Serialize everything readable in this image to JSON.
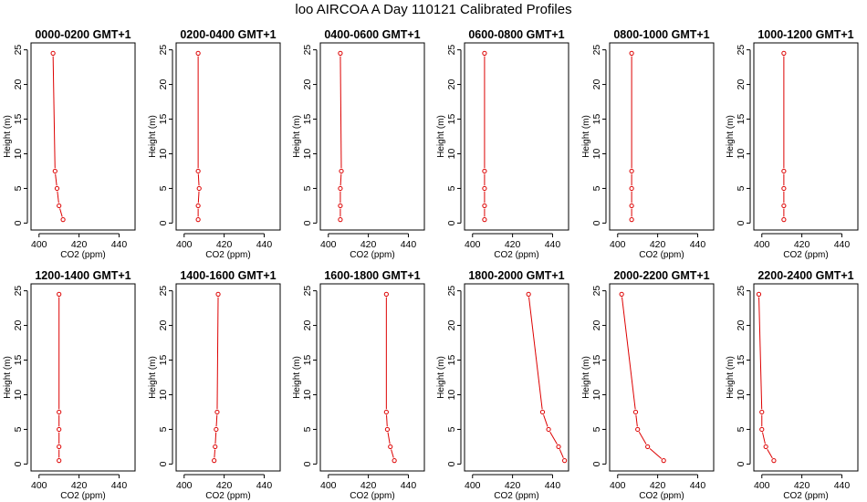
{
  "title": "loo AIRCOA A  Day 110121  Calibrated Profiles",
  "colors": {
    "series": "#dd0000",
    "axis": "#000000",
    "background": "#ffffff"
  },
  "chart_data": [
    {
      "type": "line",
      "title": "0000-0200 GMT+1",
      "xlabel": "CO2 (ppm)",
      "ylabel": "Height (m)",
      "xlim": [
        396,
        448
      ],
      "ylim": [
        -1,
        26
      ],
      "xticks": [
        400,
        420,
        440
      ],
      "yticks": [
        0,
        5,
        10,
        15,
        20,
        25
      ],
      "grid": false,
      "series": [
        {
          "x": [
            412,
            410,
            409,
            408,
            407
          ],
          "y": [
            0.5,
            2.5,
            5,
            7.5,
            24.5
          ]
        }
      ]
    },
    {
      "type": "line",
      "title": "0200-0400 GMT+1",
      "xlabel": "CO2 (ppm)",
      "ylabel": "Height (m)",
      "xlim": [
        396,
        448
      ],
      "ylim": [
        -1,
        26
      ],
      "xticks": [
        400,
        420,
        440
      ],
      "yticks": [
        0,
        5,
        10,
        15,
        20,
        25
      ],
      "grid": false,
      "series": [
        {
          "x": [
            407,
            407,
            407.5,
            407,
            407
          ],
          "y": [
            0.5,
            2.5,
            5,
            7.5,
            24.5
          ]
        }
      ]
    },
    {
      "type": "line",
      "title": "0400-0600 GMT+1",
      "xlabel": "CO2 (ppm)",
      "ylabel": "Height (m)",
      "xlim": [
        396,
        448
      ],
      "ylim": [
        -1,
        26
      ],
      "xticks": [
        400,
        420,
        440
      ],
      "yticks": [
        0,
        5,
        10,
        15,
        20,
        25
      ],
      "grid": false,
      "series": [
        {
          "x": [
            406,
            406,
            406,
            406.5,
            406
          ],
          "y": [
            0.5,
            2.5,
            5,
            7.5,
            24.5
          ]
        }
      ]
    },
    {
      "type": "line",
      "title": "0600-0800 GMT+1",
      "xlabel": "CO2 (ppm)",
      "ylabel": "Height (m)",
      "xlim": [
        396,
        448
      ],
      "ylim": [
        -1,
        26
      ],
      "xticks": [
        400,
        420,
        440
      ],
      "yticks": [
        0,
        5,
        10,
        15,
        20,
        25
      ],
      "grid": false,
      "series": [
        {
          "x": [
            406,
            406,
            406,
            406,
            406
          ],
          "y": [
            0.5,
            2.5,
            5,
            7.5,
            24.5
          ]
        }
      ]
    },
    {
      "type": "line",
      "title": "0800-1000 GMT+1",
      "xlabel": "CO2 (ppm)",
      "ylabel": "Height (m)",
      "xlim": [
        396,
        448
      ],
      "ylim": [
        -1,
        26
      ],
      "xticks": [
        400,
        420,
        440
      ],
      "yticks": [
        0,
        5,
        10,
        15,
        20,
        25
      ],
      "grid": false,
      "series": [
        {
          "x": [
            407,
            407,
            407,
            407,
            407
          ],
          "y": [
            0.5,
            2.5,
            5,
            7.5,
            24.5
          ]
        }
      ]
    },
    {
      "type": "line",
      "title": "1000-1200 GMT+1",
      "xlabel": "CO2 (ppm)",
      "ylabel": "Height (m)",
      "xlim": [
        396,
        448
      ],
      "ylim": [
        -1,
        26
      ],
      "xticks": [
        400,
        420,
        440
      ],
      "yticks": [
        0,
        5,
        10,
        15,
        20,
        25
      ],
      "grid": false,
      "series": [
        {
          "x": [
            411,
            411,
            411,
            411,
            411
          ],
          "y": [
            0.5,
            2.5,
            5,
            7.5,
            24.5
          ]
        }
      ]
    },
    {
      "type": "line",
      "title": "1200-1400 GMT+1",
      "xlabel": "CO2 (ppm)",
      "ylabel": "Height (m)",
      "xlim": [
        396,
        448
      ],
      "ylim": [
        -1,
        26
      ],
      "xticks": [
        400,
        420,
        440
      ],
      "yticks": [
        0,
        5,
        10,
        15,
        20,
        25
      ],
      "grid": false,
      "series": [
        {
          "x": [
            410,
            410,
            410,
            410,
            410
          ],
          "y": [
            0.5,
            2.5,
            5,
            7.5,
            24.5
          ]
        }
      ]
    },
    {
      "type": "line",
      "title": "1400-1600 GMT+1",
      "xlabel": "CO2 (ppm)",
      "ylabel": "Height (m)",
      "xlim": [
        396,
        448
      ],
      "ylim": [
        -1,
        26
      ],
      "xticks": [
        400,
        420,
        440
      ],
      "yticks": [
        0,
        5,
        10,
        15,
        20,
        25
      ],
      "grid": false,
      "series": [
        {
          "x": [
            415,
            415.5,
            416,
            416.5,
            417
          ],
          "y": [
            0.5,
            2.5,
            5,
            7.5,
            24.5
          ]
        }
      ]
    },
    {
      "type": "line",
      "title": "1600-1800 GMT+1",
      "xlabel": "CO2 (ppm)",
      "ylabel": "Height (m)",
      "xlim": [
        396,
        448
      ],
      "ylim": [
        -1,
        26
      ],
      "xticks": [
        400,
        420,
        440
      ],
      "yticks": [
        0,
        5,
        10,
        15,
        20,
        25
      ],
      "grid": false,
      "series": [
        {
          "x": [
            433,
            431,
            429.5,
            429,
            429
          ],
          "y": [
            0.5,
            2.5,
            5,
            7.5,
            24.5
          ]
        }
      ]
    },
    {
      "type": "line",
      "title": "1800-2000 GMT+1",
      "xlabel": "CO2 (ppm)",
      "ylabel": "Height (m)",
      "xlim": [
        396,
        448
      ],
      "ylim": [
        -1,
        26
      ],
      "xticks": [
        400,
        420,
        440
      ],
      "yticks": [
        0,
        5,
        10,
        15,
        20,
        25
      ],
      "grid": false,
      "series": [
        {
          "x": [
            446,
            443,
            438,
            435,
            428
          ],
          "y": [
            0.5,
            2.5,
            5,
            7.5,
            24.5
          ]
        }
      ]
    },
    {
      "type": "line",
      "title": "2000-2200 GMT+1",
      "xlabel": "CO2 (ppm)",
      "ylabel": "Height (m)",
      "xlim": [
        396,
        448
      ],
      "ylim": [
        -1,
        26
      ],
      "xticks": [
        400,
        420,
        440
      ],
      "yticks": [
        0,
        5,
        10,
        15,
        20,
        25
      ],
      "grid": false,
      "series": [
        {
          "x": [
            423,
            415,
            410,
            409,
            402
          ],
          "y": [
            0.5,
            2.5,
            5,
            7.5,
            24.5
          ]
        }
      ]
    },
    {
      "type": "line",
      "title": "2200-2400 GMT+1",
      "xlabel": "CO2 (ppm)",
      "ylabel": "Height (m)",
      "xlim": [
        396,
        448
      ],
      "ylim": [
        -1,
        26
      ],
      "xticks": [
        400,
        420,
        440
      ],
      "yticks": [
        0,
        5,
        10,
        15,
        20,
        25
      ],
      "grid": false,
      "series": [
        {
          "x": [
            406,
            402,
            400,
            400,
            398.5
          ],
          "y": [
            0.5,
            2.5,
            5,
            7.5,
            24.5
          ]
        }
      ]
    }
  ]
}
